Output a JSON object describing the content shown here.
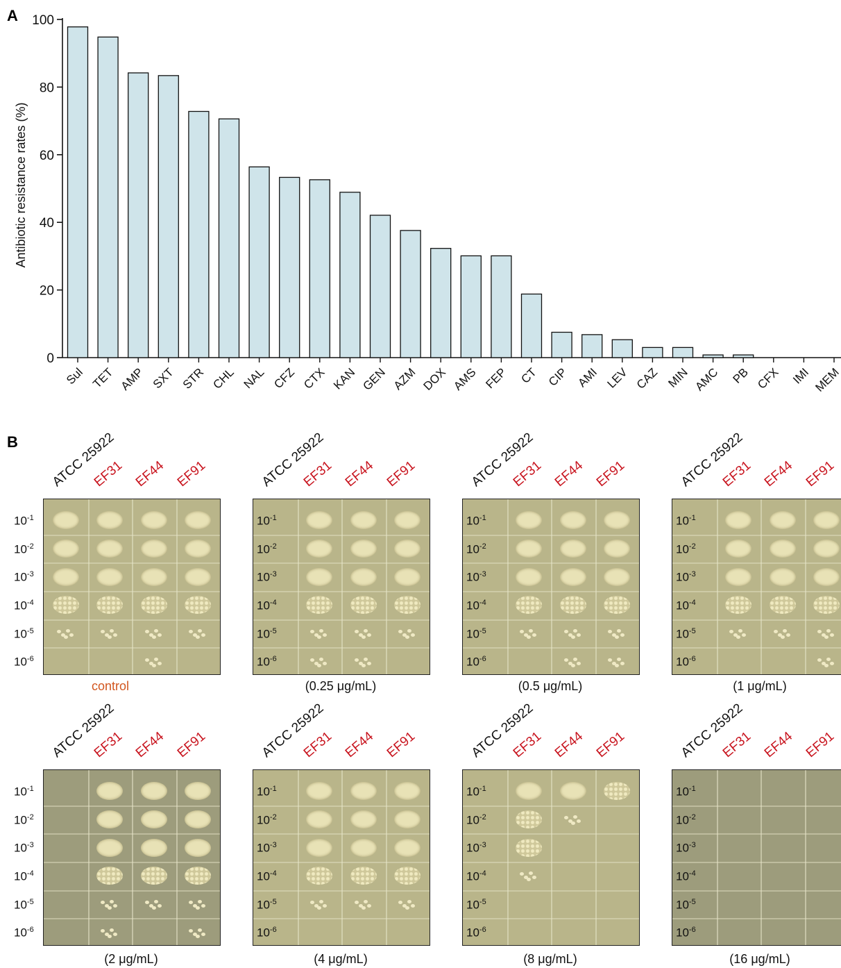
{
  "panel_a_label": "A",
  "panel_b_label": "B",
  "chart_data": {
    "type": "bar",
    "title": "",
    "xlabel": "",
    "ylabel": "Antibiotic resistance rates (%)",
    "ylim": [
      0,
      100
    ],
    "yticks": [
      "0",
      "20",
      "40",
      "60",
      "80",
      "100"
    ],
    "grid": false,
    "bar_color": "#cfe4ea",
    "categories": [
      "Sul",
      "TET",
      "AMP",
      "SXT",
      "STR",
      "CHL",
      "NAL",
      "CFZ",
      "CTX",
      "KAN",
      "GEN",
      "AZM",
      "DOX",
      "AMS",
      "FEP",
      "CT",
      "CIP",
      "AMI",
      "LEV",
      "CAZ",
      "MIN",
      "AMC",
      "PB",
      "CFX",
      "IMI",
      "MEM"
    ],
    "values": [
      97.8,
      94.8,
      84.2,
      83.4,
      72.8,
      70.6,
      56.4,
      53.3,
      52.6,
      48.9,
      42.1,
      37.6,
      32.3,
      30.1,
      30.1,
      18.8,
      7.5,
      6.8,
      5.3,
      3.0,
      3.0,
      0.8,
      0.8,
      0,
      0,
      0
    ]
  },
  "plates": {
    "strains": [
      "ATCC 25922",
      "EF31",
      "EF44",
      "EF91"
    ],
    "dilutions": [
      {
        "base": "10",
        "exp": "-1"
      },
      {
        "base": "10",
        "exp": "-2"
      },
      {
        "base": "10",
        "exp": "-3"
      },
      {
        "base": "10",
        "exp": "-4"
      },
      {
        "base": "10",
        "exp": "-5"
      },
      {
        "base": "10",
        "exp": "-6"
      }
    ],
    "conditions": [
      "control",
      "(0.25 μg/mL)",
      "(0.5 μg/mL)",
      "(1 μg/mL)",
      "(2 μg/mL)",
      "(4 μg/mL)",
      "(8 μg/mL)",
      "(16 μg/mL)"
    ],
    "colors": {
      "reference": "#111111",
      "isolate": "#c8141e",
      "control_label": "#d2561f",
      "plate": "#b9b58a",
      "colony": "#e7e1b4"
    }
  }
}
